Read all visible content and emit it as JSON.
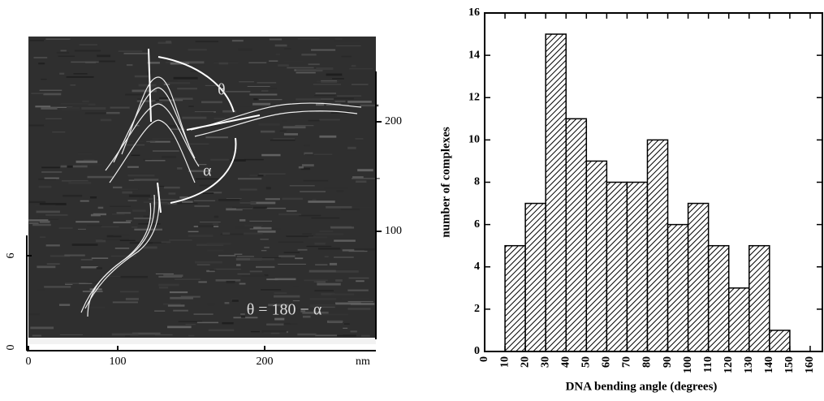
{
  "image_panel": {
    "x_labels": [
      "0",
      "100",
      "200",
      "nm"
    ],
    "left_labels": [
      "0",
      "6"
    ],
    "right_labels": [
      "100",
      "200"
    ],
    "annotations": [
      "θ",
      "α",
      "θ = 180 − α"
    ]
  },
  "chart_data": {
    "type": "histogram",
    "xlabel": "DNA bending angle (degrees)",
    "ylabel": "number of complexes",
    "bins": [
      10,
      20,
      30,
      40,
      50,
      60,
      70,
      80,
      90,
      100,
      110,
      120,
      130,
      140,
      150
    ],
    "values": [
      5,
      7,
      15,
      11,
      9,
      8,
      8,
      10,
      6,
      7,
      5,
      3,
      5,
      1
    ],
    "xlim": [
      0,
      166
    ],
    "ylim": [
      0,
      16
    ],
    "xticks": [
      0,
      10,
      20,
      30,
      40,
      50,
      60,
      70,
      80,
      90,
      100,
      110,
      120,
      130,
      140,
      150,
      160
    ],
    "yticks": [
      0,
      2,
      4,
      6,
      8,
      10,
      12,
      14,
      16
    ],
    "hatch": "diagonal"
  }
}
